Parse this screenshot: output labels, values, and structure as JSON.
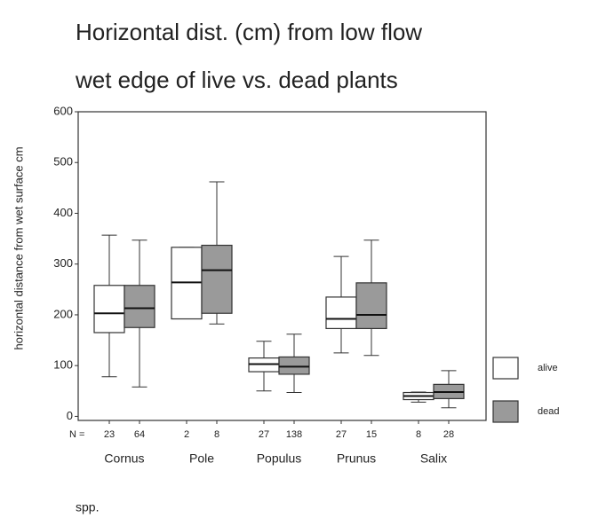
{
  "chart_data": {
    "type": "box",
    "title_lines": [
      "Horizontal dist. (cm) from low flow",
      "wet edge of live vs. dead plants"
    ],
    "ylabel": "horizontal distance from wet surface cm",
    "xlabel": "spp.",
    "n_label": "N =",
    "categories": [
      "Cornus",
      "Pole",
      "Populus",
      "Prunus",
      "Salix"
    ],
    "ylim": [
      -8,
      600
    ],
    "yticks": [
      0,
      100,
      200,
      300,
      400,
      500,
      600
    ],
    "series": [
      {
        "name": "alive",
        "color": "#ffffff",
        "counts": [
          23,
          2,
          27,
          27,
          8
        ],
        "min": [
          78,
          192,
          50,
          125,
          28
        ],
        "q1": [
          165,
          192,
          88,
          173,
          33
        ],
        "median": [
          203,
          264,
          103,
          192,
          40
        ],
        "q3": [
          258,
          333,
          115,
          235,
          47
        ],
        "max": [
          357,
          333,
          148,
          315,
          48
        ]
      },
      {
        "name": "dead",
        "color": "#9a9a9a",
        "counts": [
          64,
          8,
          138,
          15,
          28
        ],
        "min": [
          58,
          182,
          47,
          120,
          17
        ],
        "q1": [
          175,
          203,
          83,
          173,
          35
        ],
        "median": [
          213,
          288,
          98,
          200,
          48
        ],
        "q3": [
          258,
          337,
          117,
          263,
          63
        ],
        "max": [
          347,
          462,
          162,
          347,
          90
        ]
      }
    ]
  }
}
